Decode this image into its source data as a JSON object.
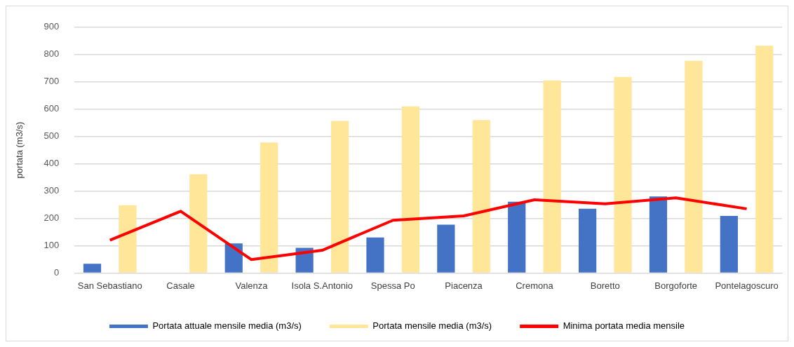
{
  "chart_data": {
    "type": "bar",
    "ylabel": "portata (m3/s)",
    "categories": [
      "San Sebastiano",
      "Casale",
      "Valenza",
      "Isola S.Antonio",
      "Spessa Po",
      "Piacenza",
      "Cremona",
      "Boretto",
      "Borgoforte",
      "Pontelagoscuro"
    ],
    "series": [
      {
        "name": "Portata attuale mensile media (m3/s)",
        "color": "#4472c4",
        "values": [
          34,
          null,
          108,
          92,
          130,
          177,
          261,
          235,
          280,
          209
        ]
      },
      {
        "name": "Portata mensile media (m3/s)",
        "color": "#ffe699",
        "values": [
          248,
          362,
          478,
          557,
          610,
          560,
          705,
          718,
          777,
          832
        ]
      },
      {
        "name": "Minima portata media mensile",
        "type": "line",
        "color": "#ff0000",
        "values": [
          120,
          226,
          49,
          83,
          193,
          209,
          268,
          253,
          275,
          235
        ]
      }
    ],
    "ylim": [
      0,
      900
    ],
    "yticks": [
      0,
      100,
      200,
      300,
      400,
      500,
      600,
      700,
      800,
      900
    ],
    "grid": "y",
    "legend": "bottom",
    "marker": "none"
  }
}
